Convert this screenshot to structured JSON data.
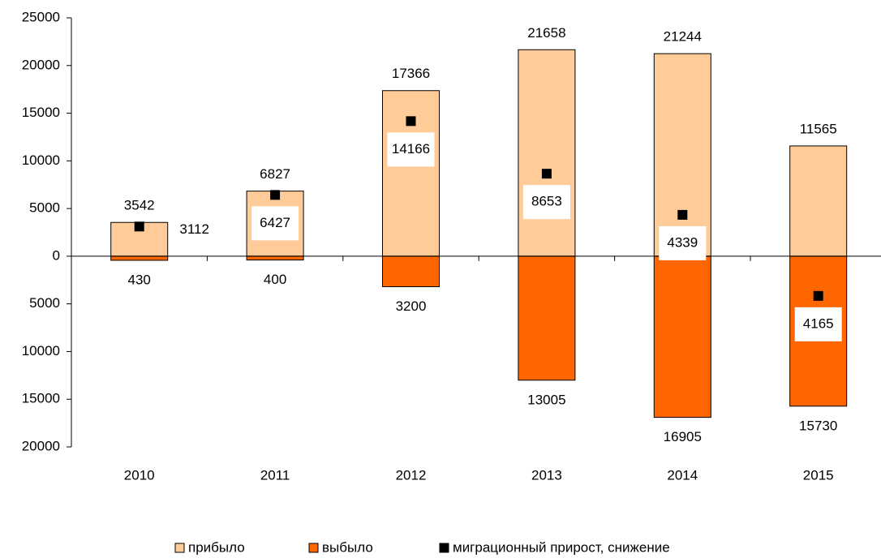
{
  "chart_data": {
    "type": "bar",
    "categories": [
      "2010",
      "2011",
      "2012",
      "2013",
      "2014",
      "2015"
    ],
    "series": [
      {
        "name": "прибыло",
        "color": "#ffcc99",
        "values": [
          3542,
          6827,
          17366,
          21658,
          21244,
          11565
        ]
      },
      {
        "name": "выбыло",
        "color": "#ff6600",
        "values": [
          -430,
          -400,
          -3200,
          -13005,
          -16905,
          -15730
        ],
        "value_labels": [
          "430",
          "400",
          "3200",
          "13005",
          "16905",
          "15730"
        ]
      },
      {
        "name": "миграционный прирост, снижение",
        "color": "#000000",
        "type": "scatter",
        "values": [
          3112,
          6427,
          14166,
          8653,
          4339,
          -4165
        ],
        "value_labels": [
          "3112",
          "6427",
          "14166",
          "8653",
          "4339",
          "4165"
        ]
      }
    ],
    "ylim": [
      -20000,
      25000
    ],
    "yticks": [
      {
        "value": -20000,
        "label": "20000"
      },
      {
        "value": -15000,
        "label": "15000"
      },
      {
        "value": -10000,
        "label": "10000"
      },
      {
        "value": -5000,
        "label": "5000"
      },
      0,
      5000,
      10000,
      15000,
      20000,
      25000
    ],
    "legend": "bottom"
  }
}
